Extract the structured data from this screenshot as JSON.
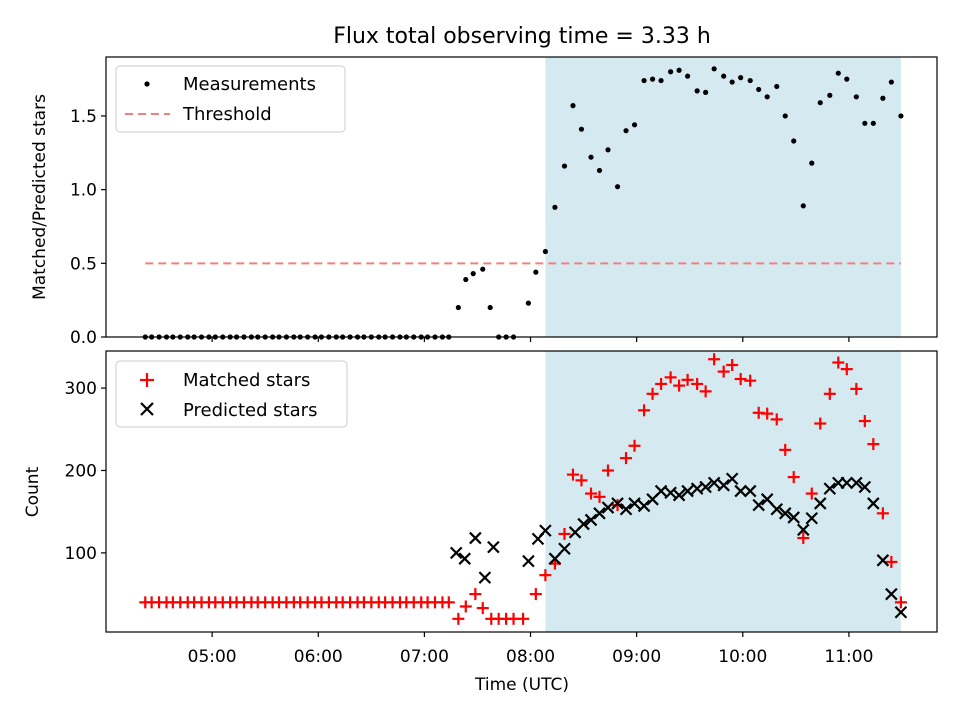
{
  "chart_data": {
    "type": "scatter",
    "title": "Flux total observing time = 3.33 h",
    "xlabel": "Time (UTC)",
    "x_ticks": [
      "05:00",
      "06:00",
      "07:00",
      "08:00",
      "09:00",
      "10:00",
      "11:00"
    ],
    "x_tick_hours": [
      5,
      6,
      7,
      8,
      9,
      10,
      11
    ],
    "xlim_hours": [
      4.0,
      11.83
    ],
    "shaded_region_hours": [
      8.14,
      11.49
    ],
    "shade_color": "#d4eaf0",
    "top": {
      "ylabel": "Matched/Predicted stars",
      "ylim": [
        0,
        1.9
      ],
      "yticks": [
        "0.0",
        "0.5",
        "1.0",
        "1.5"
      ],
      "ytick_values": [
        0.0,
        0.5,
        1.0,
        1.5
      ],
      "legend_position": "top-left",
      "threshold": {
        "name": "Threshold",
        "value": 0.5,
        "x_range_hours": [
          4.37,
          11.49
        ],
        "color": "#f08080"
      },
      "series": [
        {
          "name": "Measurements",
          "color": "#000000",
          "x": [
            4.37,
            4.43,
            4.5,
            4.57,
            4.63,
            4.7,
            4.77,
            4.83,
            4.9,
            4.97,
            5.03,
            5.1,
            5.17,
            5.23,
            5.3,
            5.37,
            5.43,
            5.5,
            5.57,
            5.63,
            5.7,
            5.77,
            5.83,
            5.9,
            5.97,
            6.03,
            6.1,
            6.17,
            6.23,
            6.3,
            6.37,
            6.43,
            6.5,
            6.57,
            6.63,
            6.7,
            6.77,
            6.83,
            6.9,
            6.97,
            7.03,
            7.1,
            7.17,
            7.23,
            7.32,
            7.39,
            7.46,
            7.55,
            7.62,
            7.7,
            7.77,
            7.84,
            7.98,
            8.05,
            8.14,
            8.23,
            8.32,
            8.4,
            8.48,
            8.57,
            8.65,
            8.73,
            8.82,
            8.9,
            8.98,
            9.07,
            9.15,
            9.23,
            9.32,
            9.4,
            9.48,
            9.57,
            9.65,
            9.73,
            9.82,
            9.9,
            9.98,
            10.07,
            10.15,
            10.23,
            10.32,
            10.4,
            10.48,
            10.57,
            10.65,
            10.73,
            10.82,
            10.9,
            10.98,
            11.07,
            11.15,
            11.23,
            11.32,
            11.4,
            11.49
          ],
          "y": [
            0,
            0,
            0,
            0,
            0,
            0,
            0,
            0,
            0,
            0,
            0,
            0,
            0,
            0,
            0,
            0,
            0,
            0,
            0,
            0,
            0,
            0,
            0,
            0,
            0,
            0,
            0,
            0,
            0,
            0,
            0,
            0,
            0,
            0,
            0,
            0,
            0,
            0,
            0,
            0,
            0,
            0,
            0,
            0,
            0.2,
            0.39,
            0.43,
            0.46,
            0.2,
            0,
            0,
            0,
            0.23,
            0.44,
            0.58,
            0.88,
            1.16,
            1.57,
            1.41,
            1.22,
            1.13,
            1.27,
            1.02,
            1.4,
            1.44,
            1.74,
            1.75,
            1.74,
            1.8,
            1.81,
            1.77,
            1.67,
            1.66,
            1.82,
            1.77,
            1.73,
            1.76,
            1.74,
            1.68,
            1.63,
            1.7,
            1.5,
            1.33,
            0.89,
            1.18,
            1.59,
            1.64,
            1.79,
            1.75,
            1.63,
            1.45,
            1.45,
            1.62,
            1.73,
            1.5
          ]
        }
      ]
    },
    "bottom": {
      "ylabel": "Count",
      "ylim": [
        4,
        345
      ],
      "yticks": [
        "100",
        "200",
        "300"
      ],
      "ytick_values": [
        100,
        200,
        300
      ],
      "legend_position": "top-left",
      "series": [
        {
          "name": "Matched stars",
          "color": "#ff0000",
          "marker": "+",
          "x": [
            4.37,
            4.43,
            4.5,
            4.57,
            4.63,
            4.7,
            4.77,
            4.83,
            4.9,
            4.97,
            5.03,
            5.1,
            5.17,
            5.23,
            5.3,
            5.37,
            5.43,
            5.5,
            5.57,
            5.63,
            5.7,
            5.77,
            5.83,
            5.9,
            5.97,
            6.03,
            6.1,
            6.17,
            6.23,
            6.3,
            6.37,
            6.43,
            6.5,
            6.57,
            6.63,
            6.7,
            6.77,
            6.83,
            6.9,
            6.97,
            7.03,
            7.1,
            7.17,
            7.23,
            7.32,
            7.39,
            7.48,
            7.55,
            7.63,
            7.7,
            7.77,
            7.84,
            7.93,
            8.05,
            8.14,
            8.23,
            8.32,
            8.4,
            8.48,
            8.57,
            8.65,
            8.73,
            8.82,
            8.9,
            8.98,
            9.07,
            9.15,
            9.23,
            9.32,
            9.4,
            9.48,
            9.57,
            9.65,
            9.73,
            9.82,
            9.9,
            9.98,
            10.07,
            10.15,
            10.23,
            10.32,
            10.4,
            10.48,
            10.57,
            10.65,
            10.73,
            10.82,
            10.9,
            10.98,
            11.07,
            11.15,
            11.23,
            11.32,
            11.4,
            11.49
          ],
          "y": [
            40,
            40,
            40,
            40,
            40,
            40,
            40,
            40,
            40,
            40,
            40,
            40,
            40,
            40,
            40,
            40,
            40,
            40,
            40,
            40,
            40,
            40,
            40,
            40,
            40,
            40,
            40,
            40,
            40,
            40,
            40,
            40,
            40,
            40,
            40,
            40,
            40,
            40,
            40,
            40,
            40,
            40,
            40,
            40,
            20,
            35,
            50,
            33,
            20,
            20,
            20,
            20,
            20,
            50,
            73,
            87,
            123,
            195,
            188,
            172,
            168,
            200,
            158,
            215,
            230,
            273,
            293,
            305,
            313,
            303,
            310,
            305,
            296,
            335,
            320,
            328,
            311,
            309,
            270,
            269,
            262,
            225,
            192,
            118,
            172,
            257,
            293,
            331,
            323,
            299,
            260,
            232,
            148,
            89,
            40
          ]
        },
        {
          "name": "Predicted stars",
          "color": "#000000",
          "marker": "x",
          "x": [
            7.3,
            7.38,
            7.48,
            7.57,
            7.65,
            7.98,
            8.07,
            8.14,
            8.23,
            8.32,
            8.42,
            8.5,
            8.57,
            8.65,
            8.73,
            8.82,
            8.9,
            8.98,
            9.07,
            9.15,
            9.23,
            9.32,
            9.4,
            9.48,
            9.57,
            9.65,
            9.73,
            9.82,
            9.9,
            9.98,
            10.07,
            10.15,
            10.23,
            10.32,
            10.4,
            10.48,
            10.57,
            10.65,
            10.73,
            10.82,
            10.9,
            10.98,
            11.07,
            11.15,
            11.23,
            11.32,
            11.4,
            11.49
          ],
          "y": [
            100,
            93,
            118,
            70,
            107,
            90,
            117,
            127,
            93,
            105,
            125,
            135,
            140,
            148,
            155,
            160,
            153,
            160,
            157,
            165,
            175,
            173,
            170,
            175,
            178,
            180,
            185,
            182,
            190,
            175,
            175,
            158,
            165,
            153,
            148,
            143,
            128,
            142,
            160,
            178,
            185,
            185,
            185,
            180,
            160,
            91,
            50,
            28
          ]
        }
      ]
    }
  }
}
